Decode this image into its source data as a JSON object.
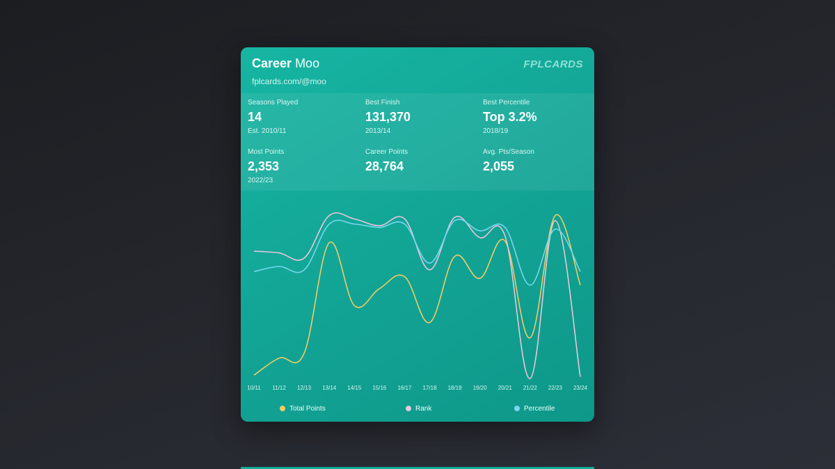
{
  "header": {
    "title_bold": "Career",
    "title_name": "Moo",
    "url": "fplcards.com/@moo",
    "brand": "FPLCARDS"
  },
  "stats": [
    {
      "label": "Seasons Played",
      "value": "14",
      "sub": "Est. 2010/11"
    },
    {
      "label": "Best Finish",
      "value": "131,370",
      "sub": "2013/14"
    },
    {
      "label": "Best Percentile",
      "value": "Top 3.2%",
      "sub": "2018/19"
    },
    {
      "label": "Most Points",
      "value": "2,353",
      "sub": "2022/23"
    },
    {
      "label": "Career Points",
      "value": "28,764",
      "sub": ""
    },
    {
      "label": "Avg. Pts/Season",
      "value": "2,055",
      "sub": ""
    }
  ],
  "chart_data": {
    "type": "line",
    "title": "",
    "xlabel": "",
    "ylabel": "",
    "ylim": [
      0,
      100
    ],
    "grid": false,
    "legend_position": "bottom",
    "categories": [
      "10/11",
      "11/12",
      "12/13",
      "13/14",
      "14/15",
      "15/16",
      "16/17",
      "17/18",
      "18/19",
      "19/20",
      "20/21",
      "21/22",
      "22/23",
      "23/24"
    ],
    "series": [
      {
        "name": "Total Points",
        "color": "#f2cc66",
        "values": [
          2,
          12,
          15,
          80,
          43,
          53,
          60,
          33,
          72,
          59,
          81,
          24,
          96,
          55
        ]
      },
      {
        "name": "Rank",
        "color": "#eac6dc",
        "values": [
          75,
          74,
          71,
          96,
          94,
          90,
          94,
          64,
          95,
          83,
          84,
          0,
          93,
          1
        ]
      },
      {
        "name": "Percentile",
        "color": "#79d6ef",
        "values": [
          63,
          66,
          64,
          91,
          91,
          89,
          91,
          68,
          93,
          87,
          89,
          55,
          88,
          63
        ]
      }
    ]
  }
}
